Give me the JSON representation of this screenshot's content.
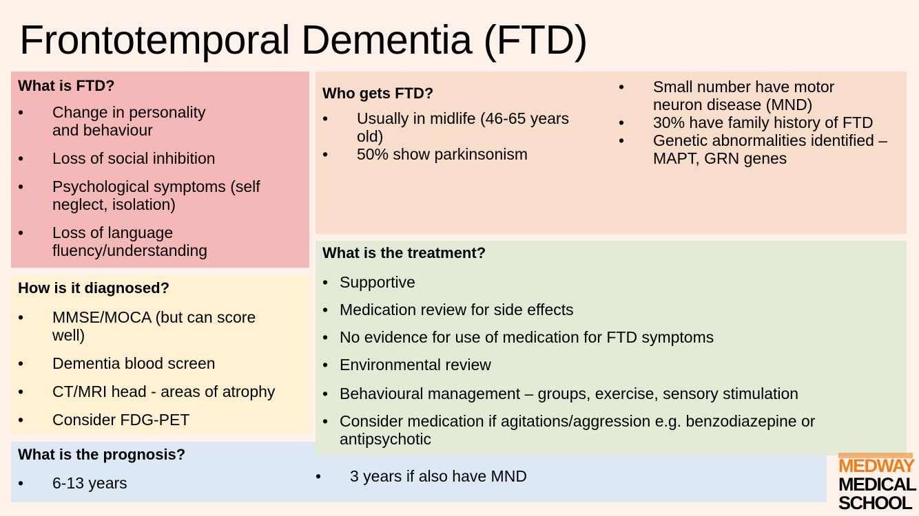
{
  "title": "Frontotemporal Dementia (FTD)",
  "what_is": {
    "heading": "What is FTD?",
    "items": [
      "Change in personality and behaviour",
      "Loss of social inhibition",
      "Psychological symptoms (self neglect, isolation)",
      "Loss of language fluency/understanding"
    ]
  },
  "diagnosed": {
    "heading": "How is it diagnosed?",
    "items": [
      "MMSE/MOCA (but can score well)",
      "Dementia blood screen",
      "CT/MRI head - areas of atrophy",
      "Consider FDG-PET"
    ]
  },
  "prognosis": {
    "heading": "What is the prognosis?",
    "items": [
      "6-13 years",
      "3 years if also have MND"
    ]
  },
  "who_gets": {
    "heading": "Who gets FTD?",
    "left_items": [
      "Usually in midlife (46-65 years old)",
      "50% show parkinsonism"
    ],
    "right_items": [
      "Small number have motor neuron disease (MND)",
      "30% have family history of FTD",
      "Genetic abnormalities identified – MAPT, GRN genes"
    ]
  },
  "treatment": {
    "heading": "What is the treatment?",
    "items": [
      "Supportive",
      "Medication review for side effects",
      "No evidence for use of medication for FTD symptoms",
      "Environmental review",
      "Behavioural management – groups, exercise, sensory stimulation",
      "Consider medication if agitations/aggression e.g. benzodiazepine or antipsychotic"
    ]
  },
  "bullet": "•",
  "logo": {
    "line1": "MEDWAY",
    "line2": "MEDICAL",
    "line3": "SCHOOL"
  },
  "colors": {
    "background": "#fdf1e9",
    "what_is": "#f4b8b8",
    "diagnosed": "#fff1d2",
    "prognosis": "#dde8f5",
    "who_gets": "#f8ddcb",
    "treatment": "#e3ebd7",
    "logo_accent": "#f07d1a"
  }
}
